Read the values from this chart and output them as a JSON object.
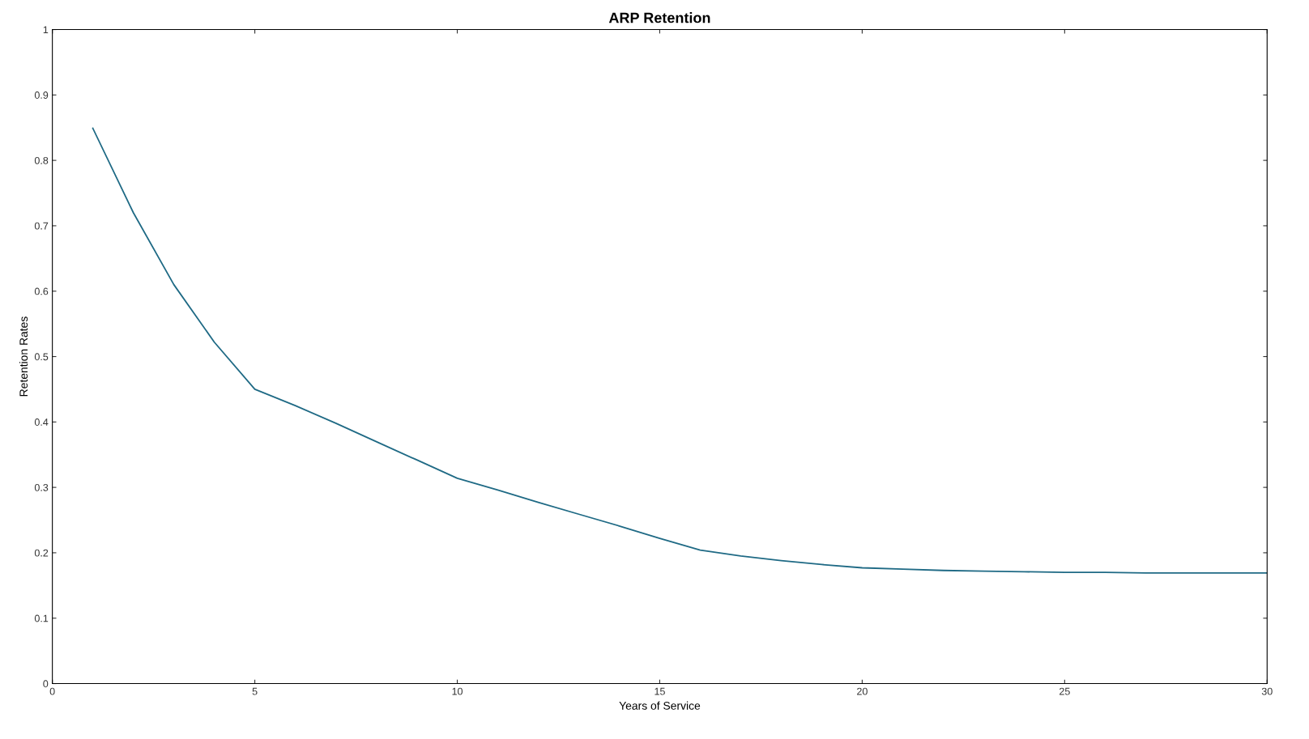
{
  "chart_data": {
    "type": "line",
    "title": "ARP Retention",
    "xlabel": "Years of Service",
    "ylabel": "Retention Rates",
    "x": [
      1,
      2,
      3,
      4,
      5,
      6,
      7,
      8,
      9,
      10,
      11,
      12,
      13,
      14,
      15,
      16,
      17,
      18,
      19,
      20,
      21,
      22,
      23,
      24,
      25,
      26,
      27,
      28,
      29,
      30
    ],
    "series": [
      {
        "color": "#1f6a85",
        "values": [
          0.849,
          0.72,
          0.61,
          0.522,
          0.45,
          0.425,
          0.398,
          0.37,
          0.342,
          0.314,
          0.296,
          0.277,
          0.259,
          0.241,
          0.222,
          0.204,
          0.195,
          0.188,
          0.182,
          0.177,
          0.175,
          0.173,
          0.172,
          0.171,
          0.17,
          0.17,
          0.169,
          0.169,
          0.169,
          0.169
        ]
      }
    ],
    "xlim": [
      0,
      30
    ],
    "xticks": [
      0,
      5,
      10,
      15,
      20,
      25,
      30
    ],
    "ylim": [
      0,
      1
    ],
    "yticks": [
      0,
      0.1,
      0.2,
      0.3,
      0.4,
      0.5,
      0.6,
      0.7,
      0.8,
      0.9,
      1
    ],
    "grid": false,
    "legend": false,
    "marker": "none",
    "line_style": "solid"
  }
}
